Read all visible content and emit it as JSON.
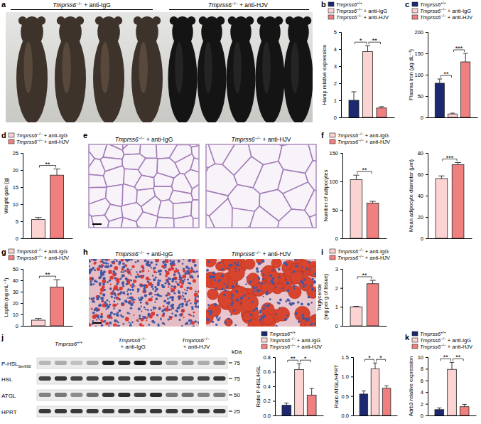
{
  "panel_letters": [
    "a",
    "b",
    "c",
    "d",
    "e",
    "f",
    "g",
    "h",
    "i",
    "j",
    "k"
  ],
  "photo_a": {
    "labels": [
      "Tmprss6−/− + anti-IgG",
      "Tmprss6−/− + anti-HJV"
    ]
  },
  "histology_e": {
    "labels": [
      "Tmprss6−/− + anti-IgG",
      "Tmprss6−/− + anti-HJV"
    ]
  },
  "histology_h": {
    "labels": [
      "Tmprss6−/− + anti-IgG",
      "Tmprss6−/− + anti-HJV"
    ]
  },
  "blot_j": {
    "groups": [
      "Tmprss6+/+",
      "Tmprss6−/− + anti-IgG",
      "Tmprss6−/− + anti-HJV"
    ],
    "bands": [
      {
        "name": "P-HSL",
        "sub": "Ser660"
      },
      {
        "name": "HSL"
      },
      {
        "name": "ATGL"
      },
      {
        "name": "HPRT"
      }
    ],
    "kda": "kDa",
    "markers": [
      75,
      75,
      50,
      25
    ]
  },
  "chart_data": [
    {
      "type": "bar",
      "ylabel": "Hamp relative expression",
      "categories": [
        null
      ],
      "ylim": [
        0,
        5
      ],
      "yticks": [
        0,
        1,
        2,
        3,
        4,
        5
      ],
      "series": [
        {
          "name": "Tmprss6+/+",
          "color": "#1c2870",
          "values": [
            1.0
          ],
          "errors": [
            0.5
          ]
        },
        {
          "name": "Tmprss6−/− + anti-IgG",
          "color": "#fbd3d3",
          "values": [
            3.85
          ],
          "errors": [
            0.35
          ]
        },
        {
          "name": "Tmprss6−/− + anti-HJV",
          "color": "#f08080",
          "values": [
            0.55
          ],
          "errors": [
            0.08
          ]
        }
      ],
      "annotations": [
        {
          "between": [
            0,
            1
          ],
          "label": "*"
        },
        {
          "between": [
            1,
            2
          ],
          "label": "**"
        }
      ]
    },
    {
      "type": "bar",
      "ylabel": "Plasma iron (μg dL⁻¹)",
      "categories": [
        null
      ],
      "ylim": [
        0,
        200
      ],
      "yticks": [
        0,
        50,
        100,
        150,
        200
      ],
      "series": [
        {
          "name": "Tmprss6+/+",
          "color": "#1c2870",
          "values": [
            80
          ],
          "errors": [
            10
          ]
        },
        {
          "name": "Tmprss6−/− + anti-IgG",
          "color": "#fbd3d3",
          "values": [
            8
          ],
          "errors": [
            2
          ]
        },
        {
          "name": "Tmprss6−/− + anti-HJV",
          "color": "#f08080",
          "values": [
            130
          ],
          "errors": [
            20
          ]
        }
      ],
      "annotations": [
        {
          "between": [
            0,
            1
          ],
          "label": "**"
        },
        {
          "between": [
            1,
            2
          ],
          "label": "***"
        }
      ]
    },
    {
      "type": "bar",
      "ylabel": "Weight gain (g)",
      "categories": [
        null
      ],
      "ylim": [
        0,
        25
      ],
      "yticks": [
        0,
        5,
        10,
        15,
        20,
        25
      ],
      "series": [
        {
          "name": "Tmprss6−/− + anti-IgG",
          "color": "#fbd3d3",
          "values": [
            5.5
          ],
          "errors": [
            0.6
          ]
        },
        {
          "name": "Tmprss6−/− + anti-HJV",
          "color": "#f08080",
          "values": [
            18.5
          ],
          "errors": [
            1.8
          ]
        }
      ],
      "annotations": [
        {
          "between": [
            0,
            1
          ],
          "label": "**"
        }
      ]
    },
    {
      "type": "bar",
      "ylabel": "Number of adipocytes",
      "categories": [
        null
      ],
      "ylim": [
        0,
        150
      ],
      "yticks": [
        0,
        50,
        100,
        150
      ],
      "series": [
        {
          "name": "Tmprss6−/− + anti-IgG",
          "color": "#fbd3d3",
          "values": [
            103
          ],
          "errors": [
            8
          ]
        },
        {
          "name": "Tmprss6−/− + anti-HJV",
          "color": "#f08080",
          "values": [
            62
          ],
          "errors": [
            3
          ]
        }
      ],
      "annotations": [
        {
          "between": [
            0,
            1
          ],
          "label": "**"
        }
      ]
    },
    {
      "type": "bar",
      "ylabel": "Mean adipocyte diameter (μm)",
      "categories": [
        null
      ],
      "ylim": [
        0,
        80
      ],
      "yticks": [
        0,
        20,
        40,
        60,
        80
      ],
      "series": [
        {
          "color": "#fbd3d3",
          "values": [
            56
          ],
          "errors": [
            2.5
          ]
        },
        {
          "color": "#f08080",
          "values": [
            69
          ],
          "errors": [
            2
          ]
        }
      ],
      "annotations": [
        {
          "between": [
            0,
            1
          ],
          "label": "***"
        }
      ]
    },
    {
      "type": "bar",
      "ylabel": "Leptin (ng mL⁻¹)",
      "categories": [
        null
      ],
      "ylim": [
        0,
        50
      ],
      "yticks": [
        0,
        10,
        20,
        30,
        40,
        50
      ],
      "series": [
        {
          "name": "Tmprss6−/− + anti-IgG",
          "color": "#fbd3d3",
          "values": [
            5
          ],
          "errors": [
            1.5
          ]
        },
        {
          "name": "Tmprss6−/− + anti-HJV",
          "color": "#f08080",
          "values": [
            34
          ],
          "errors": [
            6.5
          ]
        }
      ],
      "annotations": [
        {
          "between": [
            0,
            1
          ],
          "label": "**"
        }
      ]
    },
    {
      "type": "bar",
      "ylabel": "Triglyceride (mg per g of tissue)",
      "categories": [
        null
      ],
      "ylim": [
        0,
        3
      ],
      "yticks": [
        0,
        1,
        2,
        3
      ],
      "series": [
        {
          "name": "Tmprss6−/− + anti-IgG",
          "color": "#fbd3d3",
          "values": [
            1.0
          ],
          "errors": [
            0.03
          ]
        },
        {
          "name": "Tmprss6−/− + anti-HJV",
          "color": "#f08080",
          "values": [
            2.22
          ],
          "errors": [
            0.18
          ]
        }
      ],
      "annotations": [
        {
          "between": [
            0,
            1
          ],
          "label": "**"
        }
      ]
    },
    {
      "type": "bar",
      "ylabel": "Ratio P-HSL/HSL",
      "categories": [
        null
      ],
      "ylim": [
        0,
        0.8
      ],
      "yticks": [
        {
          "value": 0,
          "label": "0.0"
        },
        {
          "value": 0.2,
          "label": "0.2"
        },
        {
          "value": 0.4,
          "label": "0.4"
        },
        {
          "value": 0.6,
          "label": "0.6"
        },
        {
          "value": 0.8,
          "label": "0.8"
        }
      ],
      "series": [
        {
          "name": "Tmprss6+/+",
          "color": "#1c2870",
          "values": [
            0.14
          ],
          "errors": [
            0.03
          ]
        },
        {
          "name": "Tmprss6−/− + anti-IgG",
          "color": "#fbd3d3",
          "values": [
            0.63
          ],
          "errors": [
            0.08
          ]
        },
        {
          "name": "Tmprss6−/− + anti-HJV",
          "color": "#f08080",
          "values": [
            0.28
          ],
          "errors": [
            0.09
          ]
        }
      ],
      "annotations": [
        {
          "between": [
            0,
            1
          ],
          "label": "**"
        },
        {
          "between": [
            1,
            2
          ],
          "label": "*"
        }
      ]
    },
    {
      "type": "bar",
      "ylabel": "Ratio ATGL/HPRT",
      "categories": [
        null
      ],
      "ylim": [
        0,
        1.5
      ],
      "yticks": [
        {
          "value": 0,
          "label": "0.0"
        },
        {
          "value": 0.5,
          "label": "0.5"
        },
        {
          "value": 1,
          "label": "1.0"
        },
        {
          "value": 1.5,
          "label": "1.5"
        }
      ],
      "series": [
        {
          "color": "#1c2870",
          "values": [
            0.55
          ],
          "errors": [
            0.08
          ]
        },
        {
          "color": "#fbd3d3",
          "values": [
            1.2
          ],
          "errors": [
            0.15
          ]
        },
        {
          "color": "#f08080",
          "values": [
            0.7
          ],
          "errors": [
            0.06
          ]
        }
      ],
      "annotations": [
        {
          "between": [
            0,
            1
          ],
          "label": "*"
        },
        {
          "between": [
            1,
            2
          ],
          "label": "*"
        }
      ]
    },
    {
      "type": "bar",
      "ylabel": "Adrb3 relative expression",
      "categories": [
        null
      ],
      "ylim": [
        0,
        10
      ],
      "yticks": [
        0,
        2,
        4,
        6,
        8,
        10
      ],
      "series": [
        {
          "name": "Tmprss6+/+",
          "color": "#1c2870",
          "values": [
            1.0
          ],
          "errors": [
            0.3
          ]
        },
        {
          "name": "Tmprss6−/− + anti-IgG",
          "color": "#fbd3d3",
          "values": [
            7.9
          ],
          "errors": [
            1.2
          ]
        },
        {
          "name": "Tmprss6−/− + anti-HJV",
          "color": "#f08080",
          "values": [
            1.5
          ],
          "errors": [
            0.4
          ]
        }
      ],
      "annotations": [
        {
          "between": [
            0,
            1
          ],
          "label": "**"
        },
        {
          "between": [
            1,
            2
          ],
          "label": "**"
        }
      ]
    }
  ]
}
